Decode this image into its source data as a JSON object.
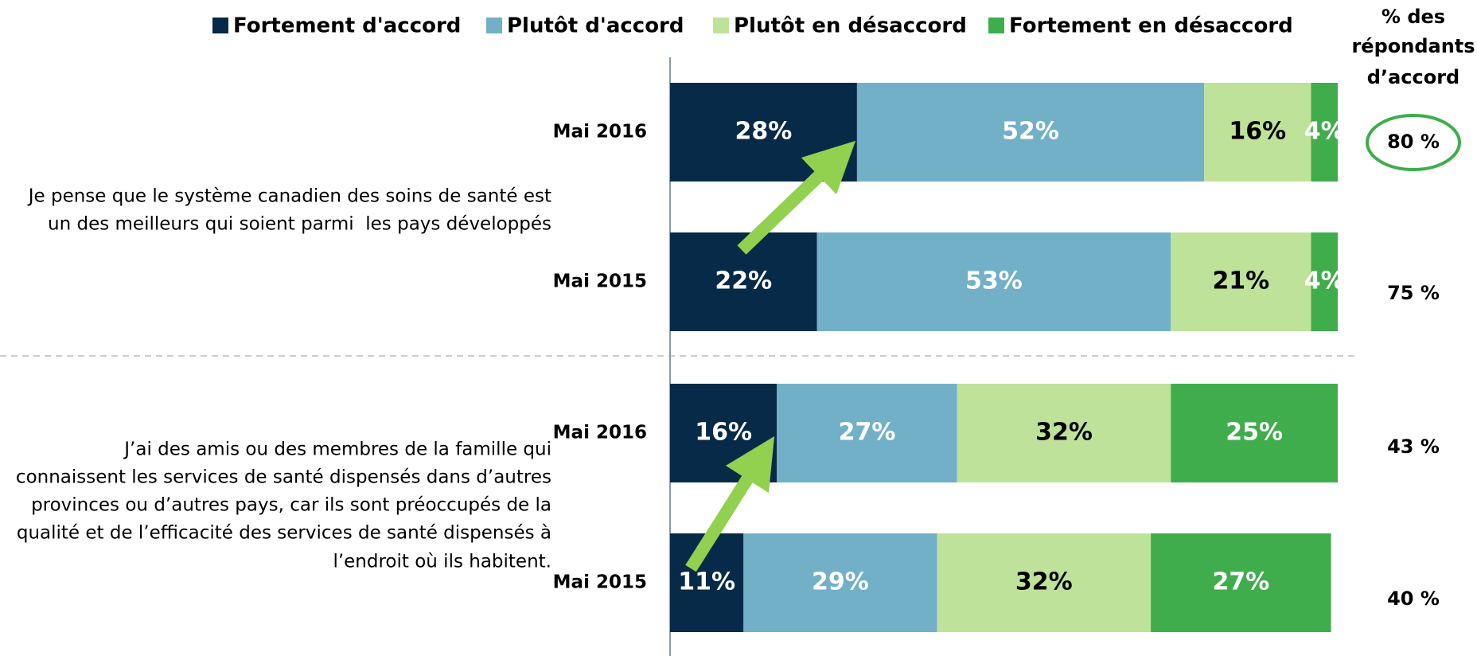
{
  "chart_data": {
    "type": "bar",
    "orientation": "horizontal",
    "stacked": true,
    "categories": [
      "Mai 2016",
      "Mai 2015",
      "Mai 2016",
      "Mai 2015"
    ],
    "group_labels": [
      [
        "Je pense que le système canadien des soins de santé est",
        "un des meilleurs qui soient parmi  les pays développés"
      ],
      [
        "J’ai des amis ou des membres de la famille qui",
        "connaissent les services de santé dispensés dans d’autres",
        "provinces ou d’autres pays, car ils sont préoccupés de la",
        "qualité et de l’efficacité des services de santé dispensés à",
        "l’endroit où ils habitent."
      ]
    ],
    "series": [
      {
        "name": "Fortement d'accord",
        "color": "#062a47",
        "label_color": "#ffffff",
        "values": [
          28,
          22,
          16,
          11
        ],
        "value_labels": [
          "28%",
          "22%",
          "16%",
          "11%"
        ]
      },
      {
        "name": "Plutôt d'accord",
        "color": "#72b0c8",
        "label_color": "#ffffff",
        "values": [
          52,
          53,
          27,
          29
        ],
        "value_labels": [
          "52%",
          "53%",
          "27%",
          "29%"
        ]
      },
      {
        "name": "Plutôt en désaccord",
        "color": "#bfe29a",
        "label_color": "#000000",
        "values": [
          16,
          21,
          32,
          32
        ],
        "value_labels": [
          "16%",
          "21%",
          "32%",
          "32%"
        ]
      },
      {
        "name": "Fortement en désaccord",
        "color": "#3fad4b",
        "label_color": "#ffffff",
        "values": [
          4,
          4,
          25,
          27
        ],
        "value_labels": [
          "4%",
          "4%",
          "25%",
          "27%"
        ]
      }
    ],
    "xlim": [
      0,
      100
    ],
    "agree_header": [
      "% des",
      "répondants",
      "d’accord"
    ],
    "agree_values": [
      80,
      75,
      43,
      40
    ],
    "agree_labels": [
      "80 %",
      "75 %",
      "43 %",
      "40 %"
    ]
  }
}
